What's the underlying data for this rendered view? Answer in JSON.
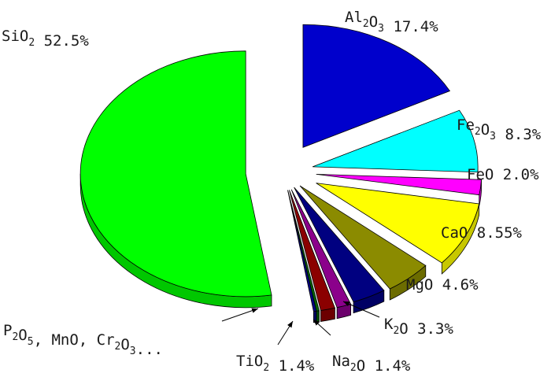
{
  "chart_data": {
    "type": "pie",
    "style": "exploded 3D pie",
    "slices": [
      {
        "label": "SiO2",
        "value": 52.5,
        "display": "52.5%",
        "color": "#00ff00"
      },
      {
        "label": "Al2O3",
        "value": 17.4,
        "display": "17.4%",
        "color": "#0000cc"
      },
      {
        "label": "Fe2O3",
        "value": 8.3,
        "display": "8.3%",
        "color": "#00ffff"
      },
      {
        "label": "FeO",
        "value": 2.0,
        "display": "2.0%",
        "color": "#ff00ff"
      },
      {
        "label": "CaO",
        "value": 8.55,
        "display": "8.55%",
        "color": "#ffff00"
      },
      {
        "label": "MgO",
        "value": 4.6,
        "display": "4.6%",
        "color": "#8b8b00"
      },
      {
        "label": "K2O",
        "value": 3.3,
        "display": "3.3%",
        "color": "#000080"
      },
      {
        "label": "Na2O",
        "value": 1.4,
        "display": "1.4%",
        "color": "#8b008b"
      },
      {
        "label": "TiO2",
        "value": 1.4,
        "display": "1.4%",
        "color": "#8b0000"
      },
      {
        "label": "P2O5, MnO, Cr2O3...",
        "value": 0.55,
        "display": "",
        "colors": [
          "#006400",
          "#000080"
        ]
      }
    ]
  }
}
